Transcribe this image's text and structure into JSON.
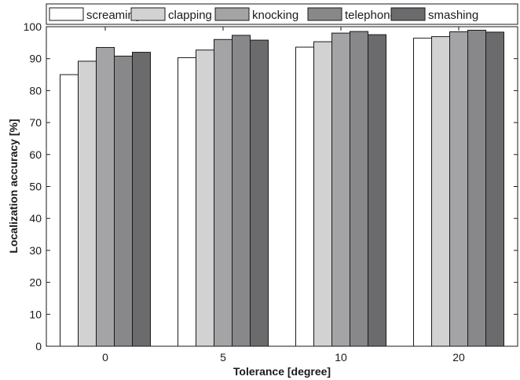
{
  "chart_data": {
    "type": "bar",
    "xlabel": "Tolerance [degree]",
    "ylabel": "Localization accuracy [%]",
    "categories": [
      "0",
      "5",
      "10",
      "20"
    ],
    "ylim": [
      0,
      100
    ],
    "yticks": [
      0,
      10,
      20,
      30,
      40,
      50,
      60,
      70,
      80,
      90,
      100
    ],
    "grid": false,
    "legend_position": "top",
    "series": [
      {
        "name": "screaming",
        "color": "#ffffff",
        "values": [
          85.0,
          90.3,
          93.6,
          96.4
        ]
      },
      {
        "name": "clapping",
        "color": "#d2d2d2",
        "values": [
          89.2,
          92.7,
          95.3,
          96.9
        ]
      },
      {
        "name": "knocking",
        "color": "#a4a4a6",
        "values": [
          93.5,
          96.0,
          98.0,
          98.4
        ]
      },
      {
        "name": "telephone",
        "color": "#88888a",
        "values": [
          90.8,
          97.3,
          98.5,
          98.9
        ]
      },
      {
        "name": "smashing",
        "color": "#6b6b6e",
        "values": [
          92.0,
          95.8,
          97.5,
          98.3
        ]
      }
    ]
  }
}
